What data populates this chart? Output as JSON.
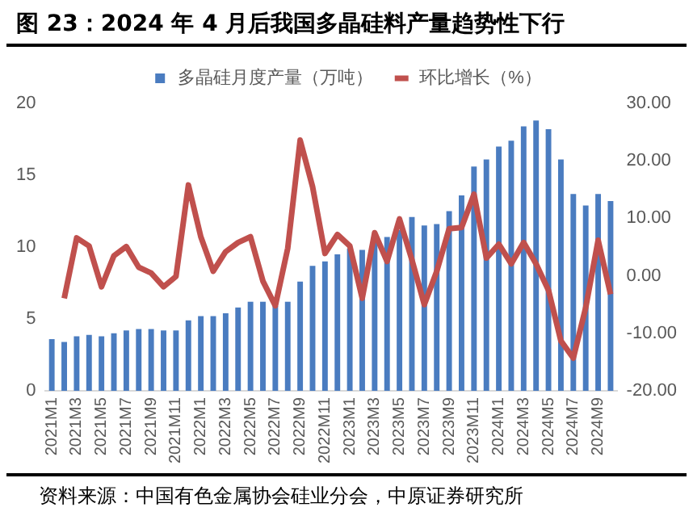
{
  "chart_data": {
    "type": "bar",
    "title": "图 23：2024 年 4 月后我国多晶硅料产量趋势性下行",
    "categories": [
      "2021M1",
      null,
      "2021M3",
      null,
      "2021M5",
      null,
      "2021M7",
      null,
      "2021M9",
      null,
      "2021M11",
      null,
      "2022M1",
      null,
      "2022M3",
      null,
      "2022M5",
      null,
      "2022M7",
      null,
      "2022M9",
      null,
      "2022M11",
      null,
      "2023M1",
      null,
      "2023M3",
      null,
      "2023M5",
      null,
      "2023M7",
      null,
      "2023M9",
      null,
      "2023M11",
      null,
      "2024M1",
      null,
      "2024M3",
      null,
      "2024M5",
      null,
      "2024M7",
      null,
      "2024M9",
      null
    ],
    "series": [
      {
        "name": "多晶硅月度产量（万吨）",
        "color": "#4a7cc0",
        "values": [
          3.6,
          3.4,
          3.8,
          3.9,
          3.8,
          4.0,
          4.2,
          4.3,
          4.3,
          4.2,
          4.2,
          4.9,
          5.2,
          5.2,
          5.4,
          5.8,
          6.2,
          6.2,
          5.9,
          6.2,
          7.6,
          8.7,
          9.0,
          9.5,
          9.9,
          9.8,
          10.5,
          10.7,
          11.2,
          12.1,
          11.5,
          11.6,
          12.5,
          13.6,
          15.6,
          16.1,
          17.0,
          17.4,
          18.4,
          18.8,
          18.2,
          16.1,
          13.7,
          12.9,
          13.7,
          13.2
        ]
      },
      {
        "name": "环比增长（%）",
        "type": "line",
        "axis": "y2",
        "color": "#c0504d",
        "values": [
          null,
          -3.9,
          6.6,
          5.2,
          -1.9,
          3.5,
          5.1,
          1.5,
          0.5,
          -1.9,
          -0.1,
          15.8,
          6.8,
          0.8,
          4.2,
          5.8,
          6.8,
          -0.9,
          -5.2,
          4.8,
          23.6,
          15.5,
          3.9,
          7.2,
          5.2,
          -3.9,
          7.5,
          2.5,
          9.9,
          2.8,
          -5.0,
          0.8,
          8.2,
          8.4,
          14.2,
          3.1,
          5.5,
          2.1,
          5.8,
          2.1,
          -2.5,
          -11.3,
          -14.3,
          -5.5,
          6.2,
          -3.2
        ]
      }
    ],
    "ylim": [
      0,
      20
    ],
    "yticks": [
      0,
      5,
      10,
      15,
      20
    ],
    "y2lim": [
      -20,
      30
    ],
    "y2ticks": [
      {
        "value": -20,
        "label": "-20.00"
      },
      {
        "value": -10,
        "label": "-10.00"
      },
      {
        "value": 0,
        "label": "0.00"
      },
      {
        "value": 10,
        "label": "10.00"
      },
      {
        "value": 20,
        "label": "20.00"
      },
      {
        "value": 30,
        "label": "30.00"
      }
    ],
    "grid": false,
    "legend": "top",
    "marker": "none",
    "annotations": [
      "资料来源：中国有色金属协会硅业分会，中原证券研究所"
    ]
  }
}
